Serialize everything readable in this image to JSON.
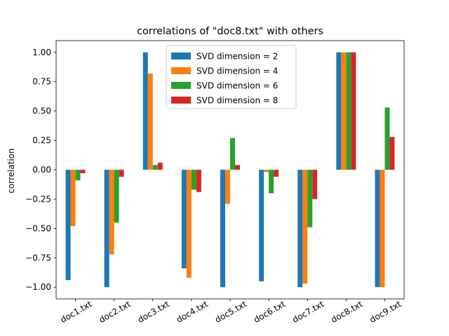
{
  "chart_data": {
    "type": "bar",
    "title": "correlations of \"doc8.txt\" with others",
    "xlabel": "",
    "ylabel": "correlation",
    "ylim": [
      -1.1,
      1.1
    ],
    "yticks": [
      -1.0,
      -0.75,
      -0.5,
      -0.25,
      0.0,
      0.25,
      0.5,
      0.75,
      1.0
    ],
    "ytick_labels": [
      "−1.00",
      "−0.75",
      "−0.50",
      "−0.25",
      "0.00",
      "0.25",
      "0.50",
      "0.75",
      "1.00"
    ],
    "grid": false,
    "legend_position": "top-center",
    "categories": [
      "doc1.txt",
      "doc2.txt",
      "doc3.txt",
      "doc4.txt",
      "doc5.txt",
      "doc6.txt",
      "doc7.txt",
      "doc8.txt",
      "doc9.txt"
    ],
    "series": [
      {
        "name": "SVD dimension = 2",
        "color": "#1f77b4",
        "values": [
          -0.94,
          -1.0,
          1.0,
          -0.84,
          -1.0,
          -0.95,
          -1.0,
          1.0,
          -1.0
        ]
      },
      {
        "name": "SVD dimension = 4",
        "color": "#ff7f0e",
        "values": [
          -0.48,
          -0.72,
          0.82,
          -0.92,
          -0.29,
          -0.02,
          -0.97,
          1.0,
          -1.0
        ]
      },
      {
        "name": "SVD dimension = 6",
        "color": "#2ca02c",
        "values": [
          -0.09,
          -0.45,
          0.04,
          -0.17,
          0.27,
          -0.2,
          -0.49,
          1.0,
          0.53
        ]
      },
      {
        "name": "SVD dimension = 8",
        "color": "#d62728",
        "values": [
          -0.03,
          -0.06,
          0.06,
          -0.19,
          0.04,
          -0.06,
          -0.25,
          1.0,
          0.28
        ]
      }
    ]
  }
}
